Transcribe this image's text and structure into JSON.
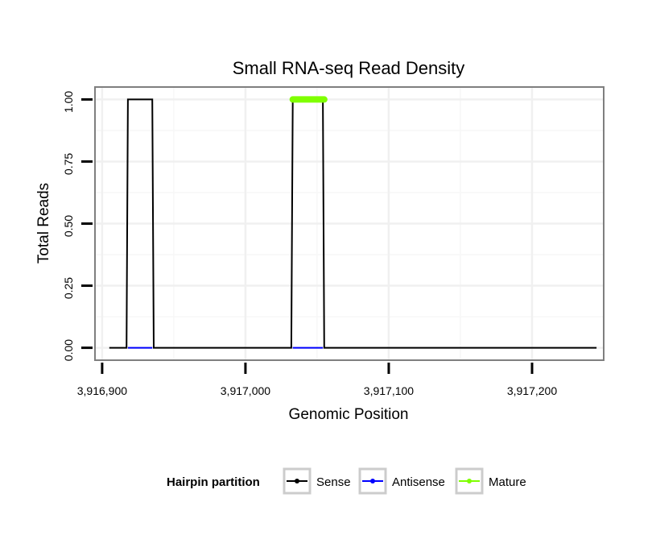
{
  "chart_data": {
    "type": "line",
    "title": "Small RNA-seq Read Density",
    "xlabel": "Genomic Position",
    "ylabel": "Total Reads",
    "xlim": [
      3916895,
      3917250
    ],
    "ylim": [
      -0.05,
      1.05
    ],
    "x_ticks": [
      3916900,
      3917000,
      3917100,
      3917200
    ],
    "x_tick_labels": [
      "3,916,900",
      "3,917,000",
      "3,917,100",
      "3,917,200"
    ],
    "y_ticks": [
      0,
      0.25,
      0.5,
      0.75,
      1.0
    ],
    "y_tick_labels": [
      "0.00",
      "0.25",
      "0.50",
      "0.75",
      "1.00"
    ],
    "grid": true,
    "legend_position": "bottom",
    "legend_title": "Hairpin partition",
    "series": [
      {
        "name": "Sense",
        "color": "#000000",
        "x": [
          3916905,
          3916917,
          3916918,
          3916935,
          3916936,
          3917032,
          3917033,
          3917054,
          3917055,
          3917245
        ],
        "y": [
          0,
          0,
          1,
          1,
          0,
          0,
          1,
          1,
          0,
          0
        ]
      },
      {
        "name": "Antisense",
        "color": "#0000ff",
        "segments": [
          [
            3916918,
            3916935
          ],
          [
            3917033,
            3917054
          ]
        ],
        "y": 0
      },
      {
        "name": "Mature",
        "color": "#7fff00",
        "segments": [
          [
            3917033,
            3917055
          ]
        ],
        "y": 1
      }
    ]
  }
}
